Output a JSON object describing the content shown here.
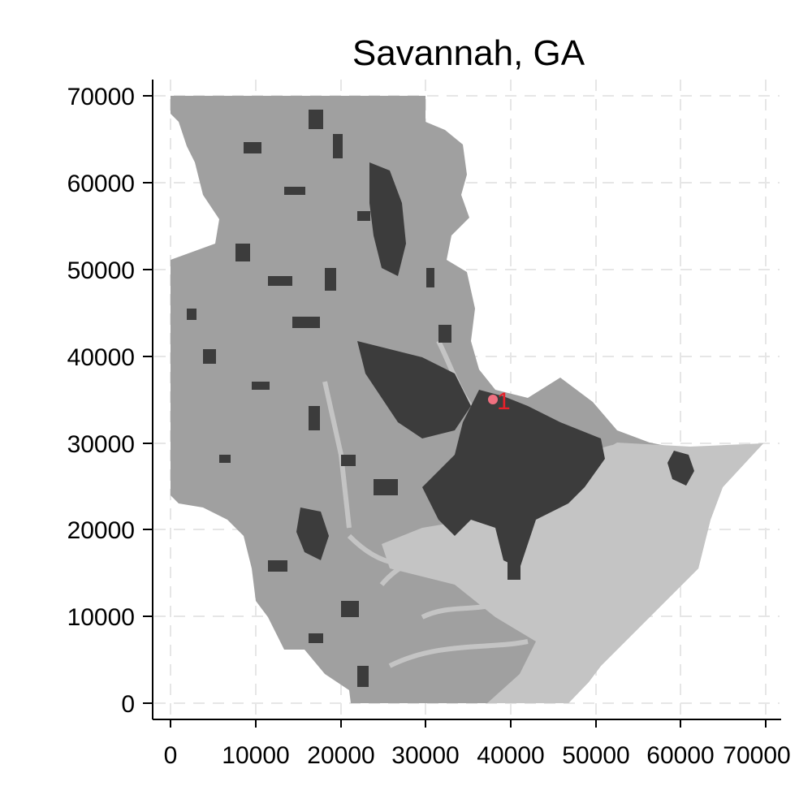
{
  "chart_data": {
    "type": "heatmap",
    "title": "Savannah, GA",
    "xlabel": "",
    "ylabel": "",
    "xlim": [
      0,
      70000
    ],
    "ylim": [
      0,
      70000
    ],
    "x_ticks": [
      "0",
      "10000",
      "20000",
      "30000",
      "40000",
      "50000",
      "60000",
      "70000"
    ],
    "y_ticks": [
      "0",
      "10000",
      "20000",
      "30000",
      "40000",
      "50000",
      "60000",
      "70000"
    ],
    "grid": true,
    "legend": "none",
    "annotations": [
      {
        "label": "1",
        "x": 38000,
        "y": 35000,
        "color": "#e8202a"
      }
    ],
    "colors": {
      "developed": "#3c3c3c",
      "land": "#a0a0a0",
      "wetland": "#c4c4c4",
      "marker": "#f07080"
    }
  }
}
